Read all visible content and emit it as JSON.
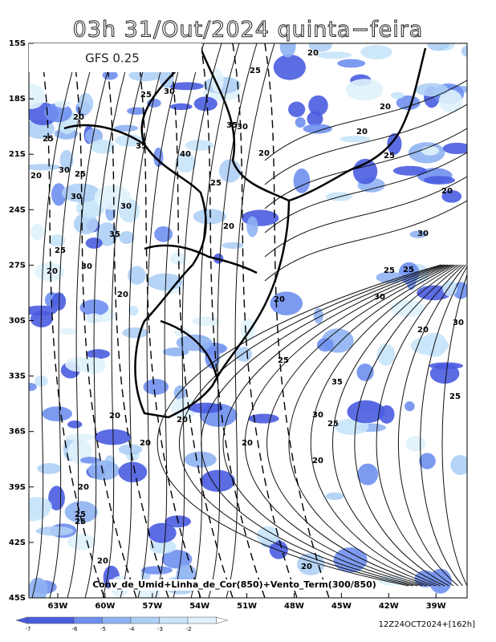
{
  "title": "03h 31/Out/2024 quinta−feira",
  "model": "GFS 0.25",
  "caption": "Conv_de_Umid+Linha_de_Cor(850)+Vento_Term(300/850)",
  "run": "12Z24OCT2024+[162h]",
  "lat_labels": [
    "15S",
    "18S",
    "21S",
    "24S",
    "27S",
    "30S",
    "33S",
    "36S",
    "39S",
    "42S",
    "45S"
  ],
  "lon_labels": [
    "63W",
    "60W",
    "57W",
    "54W",
    "51W",
    "48W",
    "45W",
    "42W",
    "39W"
  ],
  "colorbar": {
    "ticks": [
      -7,
      -6,
      -5,
      -4,
      -3,
      -2
    ],
    "colors": [
      "#4a5ce0",
      "#6f8ff0",
      "#8fb3f2",
      "#aecff5",
      "#c8e4f9",
      "#dff2fb"
    ]
  },
  "contour_labels": [
    20,
    25,
    25,
    30,
    20,
    20,
    35,
    30,
    25,
    20,
    35,
    40,
    20,
    25,
    20,
    30,
    25,
    30,
    20,
    25,
    30,
    35,
    20,
    25,
    30,
    20,
    30,
    25,
    25,
    20,
    20,
    30,
    20,
    30,
    25,
    35,
    30,
    25,
    25,
    20,
    20,
    20,
    20,
    20,
    20,
    25,
    25,
    20,
    20
  ]
}
